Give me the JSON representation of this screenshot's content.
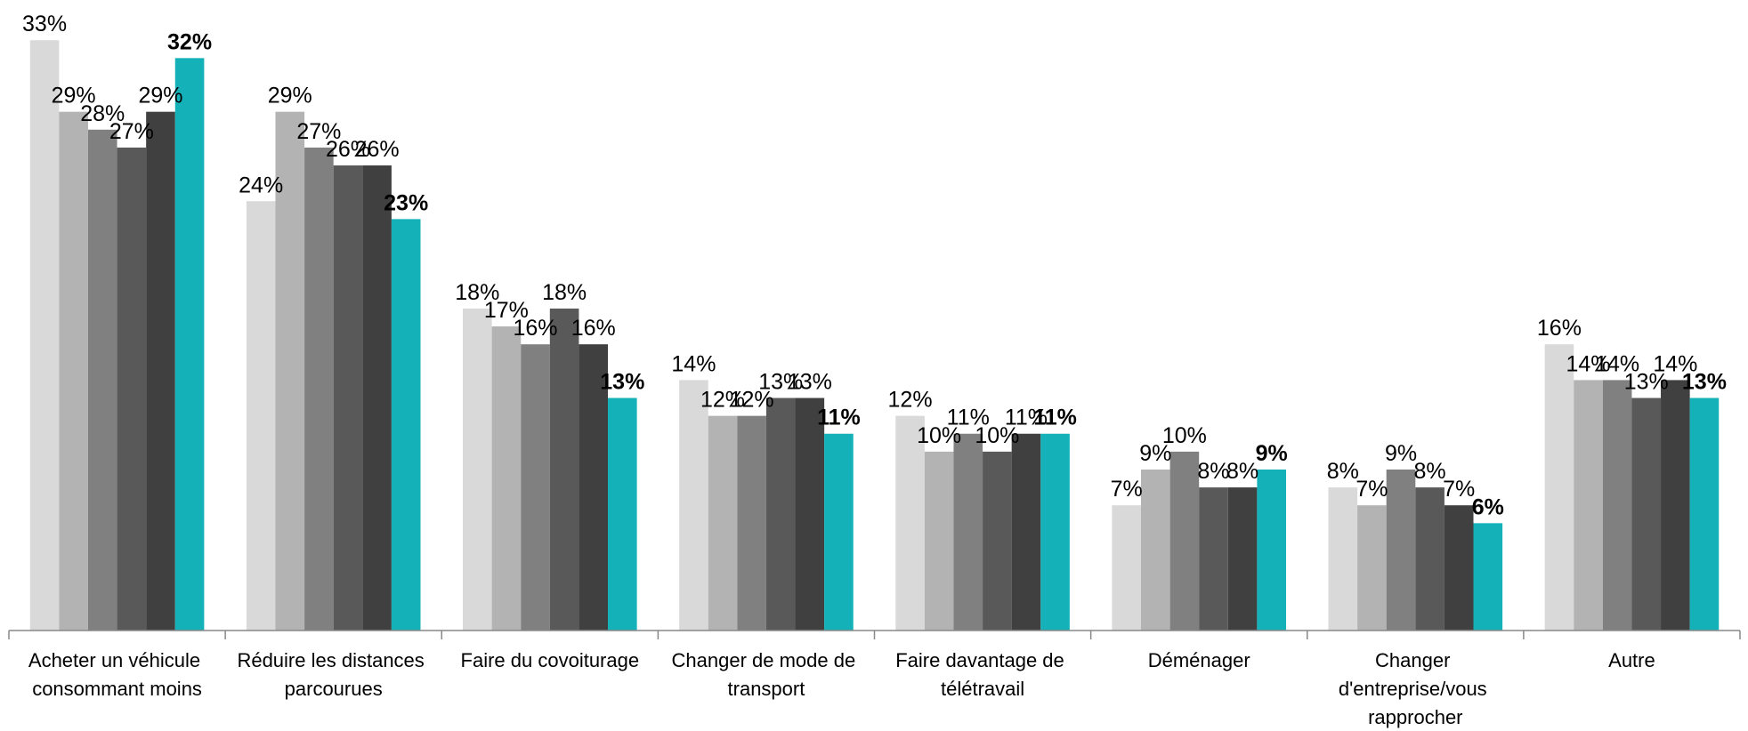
{
  "chart_data": {
    "type": "bar",
    "categories": [
      "Acheter un véhicule consommant moins",
      "Réduire les distances parcourues",
      "Faire du covoiturage",
      "Changer de mode de transport",
      "Faire davantage de télétravail",
      "Déménager",
      "Changer d'entreprise/vous rapprocher",
      "Autre"
    ],
    "series": [
      {
        "color": "#d9d9d9",
        "values": [
          33,
          24,
          18,
          14,
          12,
          7,
          8,
          16
        ],
        "value_labels": [
          "33%",
          "24%",
          "18%",
          "14%",
          "12%",
          "7%",
          "8%",
          "16%"
        ]
      },
      {
        "color": "#b3b3b3",
        "values": [
          29,
          29,
          17,
          12,
          10,
          9,
          7,
          14
        ],
        "value_labels": [
          "29%",
          "29%",
          "17%",
          "12%",
          "10%",
          "9%",
          "7%",
          "14%"
        ]
      },
      {
        "color": "#808080",
        "values": [
          28,
          27,
          16,
          12,
          11,
          10,
          9,
          14
        ],
        "value_labels": [
          "28%",
          "27%",
          "16%",
          "12%",
          "11%",
          "10%",
          "9%",
          "14%"
        ]
      },
      {
        "color": "#595959",
        "values": [
          27,
          26,
          18,
          13,
          10,
          8,
          8,
          13
        ],
        "value_labels": [
          "27%",
          "26%",
          "18%",
          "13%",
          "10%",
          "8%",
          "8%",
          "13%"
        ]
      },
      {
        "color": "#404040",
        "values": [
          29,
          26,
          16,
          13,
          11,
          8,
          7,
          14
        ],
        "value_labels": [
          "29%",
          "26%",
          "16%",
          "13%",
          "11%",
          "8%",
          "7%",
          "14%"
        ]
      },
      {
        "color": "#14b1b9",
        "values": [
          32,
          23,
          13,
          11,
          11,
          9,
          6,
          13
        ],
        "value_labels": [
          "32%",
          "23%",
          "13%",
          "11%",
          "11%",
          "9%",
          "6%",
          "13%"
        ],
        "bold_labels": true
      }
    ],
    "ylim": [
      0,
      35
    ]
  }
}
